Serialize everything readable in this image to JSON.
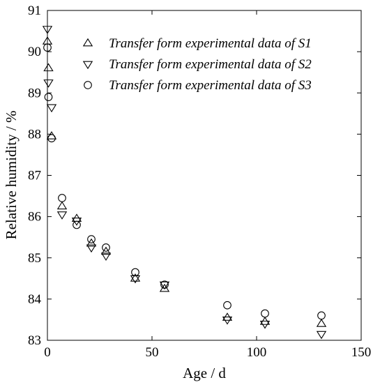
{
  "chart_data": {
    "type": "scatter",
    "title": "",
    "xlabel": "Age / d",
    "ylabel": "Relative humidity / %",
    "xlim": [
      0,
      150
    ],
    "ylim": [
      83,
      91
    ],
    "x_ticks": [
      0,
      50,
      100,
      150
    ],
    "y_ticks": [
      83,
      84,
      85,
      86,
      87,
      88,
      89,
      90,
      91
    ],
    "grid": false,
    "legend_position": "top-right",
    "series": [
      {
        "name": "Transfer form experimental data of S1",
        "marker": "triangle-up",
        "color": "#000000",
        "points": [
          [
            0,
            90.25
          ],
          [
            0.5,
            89.6
          ],
          [
            2,
            87.95
          ],
          [
            7,
            86.25
          ],
          [
            14,
            85.95
          ],
          [
            21,
            85.35
          ],
          [
            28,
            85.15
          ],
          [
            42,
            84.5
          ],
          [
            56,
            84.25
          ],
          [
            86,
            83.55
          ],
          [
            104,
            83.45
          ],
          [
            131,
            83.4
          ]
        ]
      },
      {
        "name": "Transfer form experimental data of S2",
        "marker": "triangle-down",
        "color": "#000000",
        "points": [
          [
            0,
            90.55
          ],
          [
            0.5,
            89.25
          ],
          [
            2,
            88.65
          ],
          [
            7,
            86.05
          ],
          [
            14,
            85.9
          ],
          [
            21,
            85.25
          ],
          [
            28,
            85.05
          ],
          [
            42,
            84.5
          ],
          [
            56,
            84.35
          ],
          [
            86,
            83.5
          ],
          [
            104,
            83.4
          ],
          [
            131,
            83.15
          ]
        ]
      },
      {
        "name": "Transfer form experimental data of S3",
        "marker": "circle",
        "color": "#000000",
        "points": [
          [
            0,
            90.1
          ],
          [
            0.5,
            88.9
          ],
          [
            2,
            87.9
          ],
          [
            7,
            86.45
          ],
          [
            14,
            85.8
          ],
          [
            21,
            85.45
          ],
          [
            28,
            85.25
          ],
          [
            42,
            84.65
          ],
          [
            56,
            84.35
          ],
          [
            86,
            83.85
          ],
          [
            104,
            83.65
          ],
          [
            131,
            83.6
          ]
        ]
      }
    ]
  }
}
